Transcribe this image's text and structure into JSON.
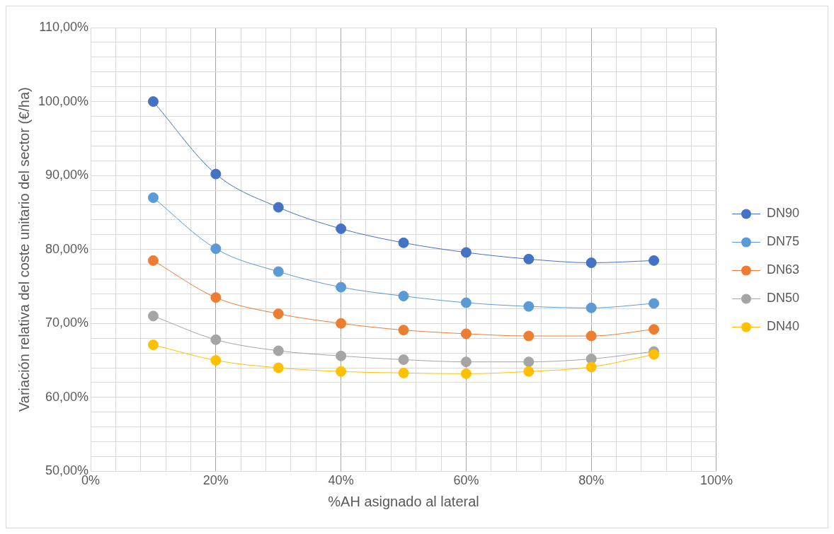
{
  "chart_data": {
    "type": "line",
    "xlabel": "%AH asignado al lateral",
    "ylabel": "Variación relativa del coste unitario del sector (€/ha)",
    "x": [
      10,
      20,
      30,
      40,
      50,
      60,
      70,
      80,
      90
    ],
    "series": [
      {
        "name": "DN90",
        "color": "#4472c4",
        "values": [
          100.0,
          90.2,
          85.7,
          82.8,
          80.9,
          79.6,
          78.7,
          78.2,
          78.5
        ]
      },
      {
        "name": "DN75",
        "color": "#5b9bd5",
        "values": [
          87.0,
          80.1,
          77.0,
          74.9,
          73.7,
          72.8,
          72.3,
          72.1,
          72.7
        ]
      },
      {
        "name": "DN63",
        "color": "#ed7d31",
        "values": [
          78.5,
          73.5,
          71.3,
          70.0,
          69.1,
          68.6,
          68.3,
          68.3,
          69.2
        ]
      },
      {
        "name": "DN50",
        "color": "#a5a5a5",
        "values": [
          71.0,
          67.8,
          66.3,
          65.6,
          65.1,
          64.8,
          64.8,
          65.2,
          66.2
        ]
      },
      {
        "name": "DN40",
        "color": "#ffc000",
        "values": [
          67.1,
          65.0,
          64.0,
          63.5,
          63.3,
          63.2,
          63.5,
          64.1,
          65.8
        ]
      }
    ],
    "xlim": [
      0,
      100
    ],
    "xticks": [
      {
        "value": 0,
        "label": "0%"
      },
      {
        "value": 4,
        "label": null
      },
      {
        "value": 8,
        "label": null
      },
      {
        "value": 12,
        "label": null
      },
      {
        "value": 16,
        "label": null
      },
      {
        "value": 20,
        "label": "20%"
      },
      {
        "value": 24,
        "label": null
      },
      {
        "value": 28,
        "label": null
      },
      {
        "value": 32,
        "label": null
      },
      {
        "value": 36,
        "label": null
      },
      {
        "value": 40,
        "label": "40%"
      },
      {
        "value": 44,
        "label": null
      },
      {
        "value": 48,
        "label": null
      },
      {
        "value": 52,
        "label": null
      },
      {
        "value": 56,
        "label": null
      },
      {
        "value": 60,
        "label": "60%"
      },
      {
        "value": 64,
        "label": null
      },
      {
        "value": 68,
        "label": null
      },
      {
        "value": 72,
        "label": null
      },
      {
        "value": 76,
        "label": null
      },
      {
        "value": 80,
        "label": "80%"
      },
      {
        "value": 84,
        "label": null
      },
      {
        "value": 88,
        "label": null
      },
      {
        "value": 92,
        "label": null
      },
      {
        "value": 96,
        "label": null
      },
      {
        "value": 100,
        "label": "100%"
      }
    ],
    "ylim": [
      50,
      110
    ],
    "yticks": [
      {
        "value": 50,
        "label": "50,00%"
      },
      {
        "value": 52,
        "label": null
      },
      {
        "value": 54,
        "label": null
      },
      {
        "value": 56,
        "label": null
      },
      {
        "value": 58,
        "label": null
      },
      {
        "value": 60,
        "label": "60,00%"
      },
      {
        "value": 62,
        "label": null
      },
      {
        "value": 64,
        "label": null
      },
      {
        "value": 66,
        "label": null
      },
      {
        "value": 68,
        "label": null
      },
      {
        "value": 70,
        "label": "70,00%"
      },
      {
        "value": 72,
        "label": null
      },
      {
        "value": 74,
        "label": null
      },
      {
        "value": 76,
        "label": null
      },
      {
        "value": 78,
        "label": null
      },
      {
        "value": 80,
        "label": "80,00%"
      },
      {
        "value": 82,
        "label": null
      },
      {
        "value": 84,
        "label": null
      },
      {
        "value": 86,
        "label": null
      },
      {
        "value": 88,
        "label": null
      },
      {
        "value": 90,
        "label": "90,00%"
      },
      {
        "value": 92,
        "label": null
      },
      {
        "value": 94,
        "label": null
      },
      {
        "value": 96,
        "label": null
      },
      {
        "value": 98,
        "label": null
      },
      {
        "value": 100,
        "label": "100,00%"
      },
      {
        "value": 102,
        "label": null
      },
      {
        "value": 104,
        "label": null
      },
      {
        "value": 106,
        "label": null
      },
      {
        "value": 108,
        "label": null
      },
      {
        "value": 110,
        "label": "110,00%"
      }
    ],
    "grid": true,
    "legend": "right",
    "marker": "circle",
    "line_style": "solid"
  }
}
